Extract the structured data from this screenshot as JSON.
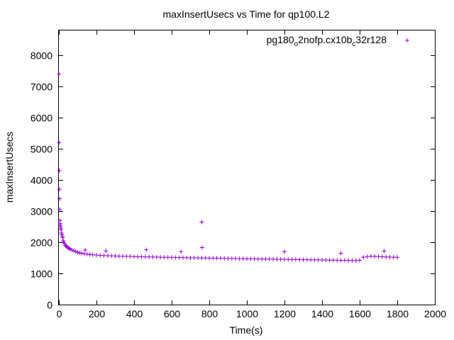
{
  "chart_data": {
    "type": "scatter",
    "title": "maxInsertUsecs vs Time for qp100.L2",
    "xlabel": "Time(s)",
    "ylabel": "maxInsertUsecs",
    "xlim": [
      0,
      2000
    ],
    "ylim": [
      0,
      8800
    ],
    "xticks": [
      "0",
      "200",
      "400",
      "600",
      "800",
      "1000",
      "1200",
      "1400",
      "1600",
      "1800",
      "2000"
    ],
    "yticks": [
      "0",
      "1000",
      "2000",
      "3000",
      "4000",
      "5000",
      "6000",
      "7000",
      "8000"
    ],
    "grid": false,
    "legend_position": "top-right",
    "series": [
      {
        "name": "pg180_o2nofp.cx10b_c32r128",
        "legend_parts": [
          {
            "text": "pg180",
            "sub": false
          },
          {
            "text": "o",
            "sub": true
          },
          {
            "text": "2nofp.cx10b",
            "sub": false
          },
          {
            "text": "c",
            "sub": true
          },
          {
            "text": "32r128",
            "sub": false
          }
        ],
        "color": "#9400d3",
        "marker": "plus",
        "x": [
          0,
          1,
          2,
          3,
          4,
          5,
          6,
          7,
          8,
          9,
          10,
          12,
          14,
          16,
          18,
          20,
          23,
          26,
          30,
          35,
          40,
          45,
          50,
          55,
          60,
          70,
          80,
          90,
          100,
          110,
          120,
          135,
          150,
          165,
          180,
          200,
          220,
          240,
          260,
          280,
          300,
          320,
          340,
          360,
          380,
          400,
          420,
          440,
          460,
          480,
          500,
          520,
          540,
          560,
          580,
          600,
          620,
          640,
          660,
          680,
          700,
          720,
          740,
          760,
          780,
          800,
          820,
          840,
          860,
          880,
          900,
          920,
          940,
          960,
          980,
          1000,
          1020,
          1040,
          1060,
          1080,
          1100,
          1120,
          1140,
          1160,
          1180,
          1200,
          1220,
          1240,
          1260,
          1280,
          1300,
          1320,
          1340,
          1360,
          1380,
          1400,
          1420,
          1440,
          1460,
          1480,
          1500,
          1520,
          1540,
          1560,
          1580,
          1600,
          1620,
          1640,
          1660,
          1680,
          1700,
          1720,
          1740,
          1760,
          1780,
          1800,
          760,
          762,
          465,
          1500,
          1730,
          1200,
          140,
          250,
          650
        ],
        "y": [
          7400,
          5200,
          4300,
          3700,
          3400,
          3050,
          2700,
          2600,
          2550,
          2500,
          2450,
          2400,
          2300,
          2250,
          2200,
          2150,
          2050,
          2000,
          1950,
          1900,
          1870,
          1850,
          1820,
          1800,
          1780,
          1750,
          1730,
          1700,
          1680,
          1660,
          1650,
          1630,
          1620,
          1610,
          1600,
          1590,
          1580,
          1575,
          1570,
          1565,
          1560,
          1555,
          1550,
          1548,
          1545,
          1540,
          1538,
          1535,
          1533,
          1530,
          1528,
          1525,
          1522,
          1520,
          1518,
          1515,
          1512,
          1510,
          1508,
          1505,
          1502,
          1500,
          1498,
          1496,
          1494,
          1492,
          1490,
          1488,
          1486,
          1484,
          1482,
          1480,
          1478,
          1476,
          1474,
          1472,
          1470,
          1468,
          1466,
          1464,
          1462,
          1460,
          1458,
          1456,
          1454,
          1452,
          1450,
          1448,
          1446,
          1444,
          1442,
          1440,
          1438,
          1436,
          1434,
          1432,
          1430,
          1428,
          1426,
          1424,
          1422,
          1420,
          1418,
          1416,
          1414,
          1420,
          1520,
          1540,
          1550,
          1545,
          1540,
          1535,
          1530,
          1525,
          1520,
          1515,
          2650,
          1830,
          1760,
          1650,
          1720,
          1700,
          1750,
          1720,
          1700
        ]
      }
    ]
  }
}
